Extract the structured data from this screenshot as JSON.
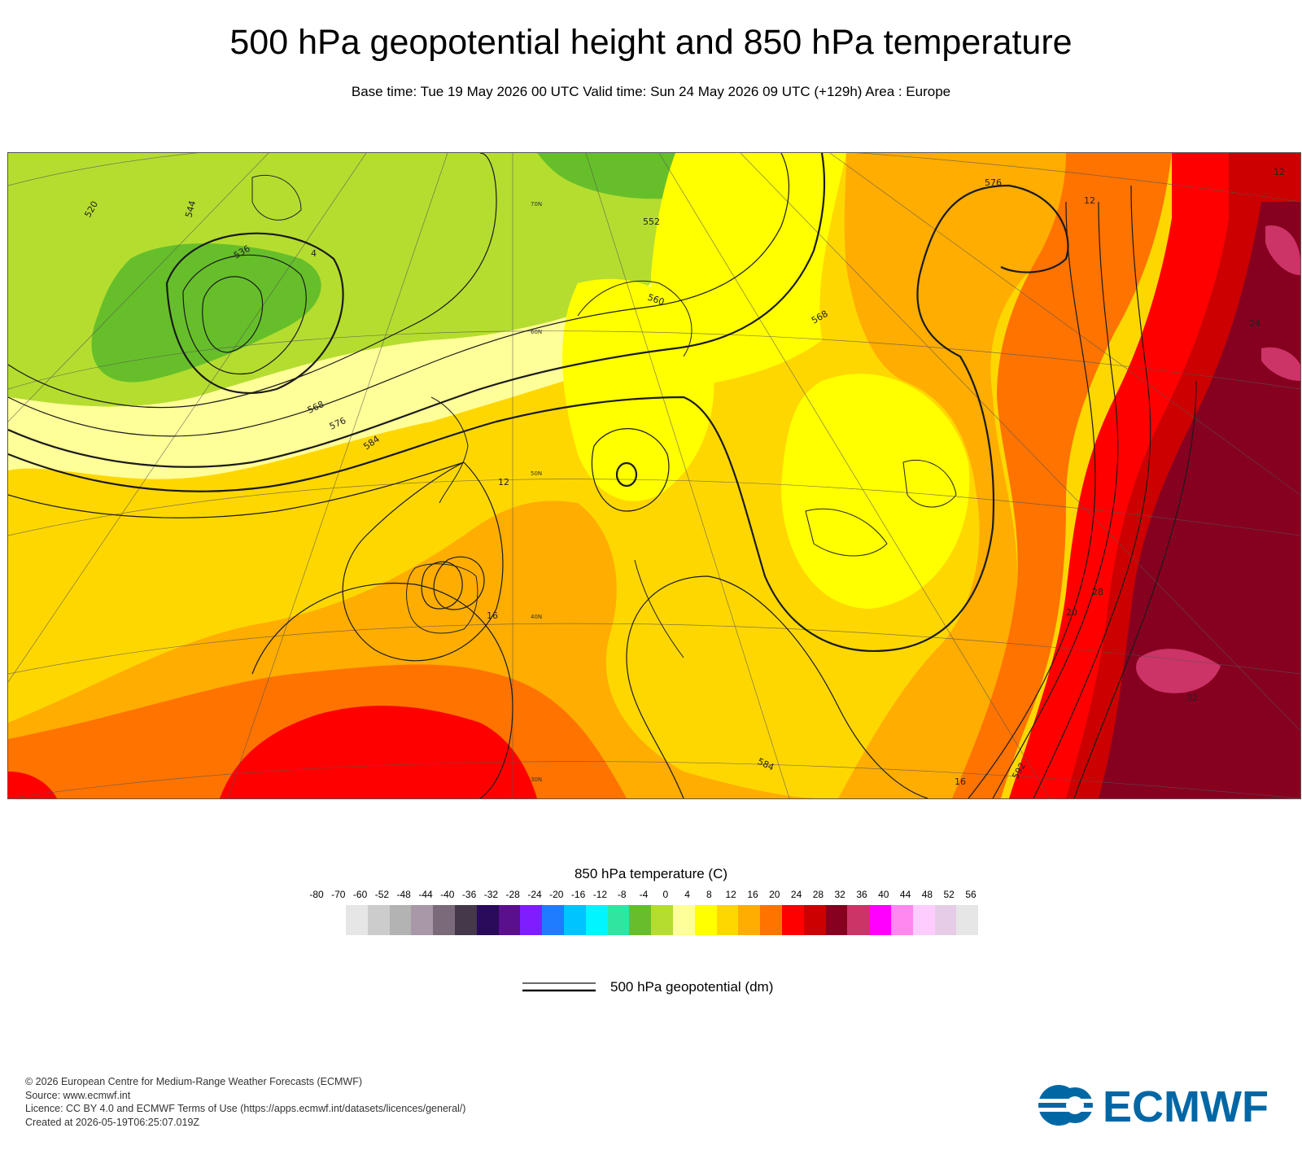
{
  "title": "500 hPa geopotential height and 850 hPa temperature",
  "subtitle": "Base time: Tue 19 May 2026 00 UTC Valid time: Sun 24 May 2026 09 UTC (+129h) Area : Europe",
  "map": {
    "contour_labels": [
      "520",
      "536",
      "544",
      "552",
      "560",
      "568",
      "576",
      "584",
      "592"
    ],
    "contour_labels_shown": [
      {
        "text": "520"
      },
      {
        "text": "536"
      },
      {
        "text": "544"
      },
      {
        "text": "552"
      },
      {
        "text": "560"
      },
      {
        "text": "568"
      },
      {
        "text": "576"
      },
      {
        "text": "584"
      },
      {
        "text": "568"
      },
      {
        "text": "576"
      },
      {
        "text": "584"
      },
      {
        "text": "592"
      }
    ],
    "graticule_labels": [
      "70N",
      "60N",
      "50N",
      "40N",
      "30N"
    ],
    "temp_labels": [
      "4",
      "12",
      "16",
      "12",
      "24",
      "28",
      "32",
      "20",
      "16",
      "12"
    ]
  },
  "colorbar": {
    "title": "850 hPa temperature (C)",
    "ticks": [
      "-80",
      "-70",
      "-60",
      "-52",
      "-48",
      "-44",
      "-40",
      "-36",
      "-32",
      "-28",
      "-24",
      "-20",
      "-16",
      "-12",
      "-8",
      "-4",
      "0",
      "4",
      "8",
      "12",
      "16",
      "20",
      "24",
      "28",
      "32",
      "36",
      "40",
      "44",
      "48",
      "52",
      "56"
    ],
    "colors": [
      "#e6e6e6",
      "#cccccc",
      "#b3b3b3",
      "#a898a8",
      "#7a6a7a",
      "#44384a",
      "#2a0a5a",
      "#5a0f8c",
      "#7f1dff",
      "#1f7cff",
      "#00c4ff",
      "#00f5ff",
      "#2ee6a0",
      "#66bf2a",
      "#b5dd30",
      "#ffff99",
      "#ffff00",
      "#ffd700",
      "#ffad00",
      "#ff7300",
      "#ff0000",
      "#cc0000",
      "#860020",
      "#cc3366",
      "#ff00ff",
      "#ff88ee",
      "#ffccff",
      "#e6cce6",
      "#e6e6e6"
    ]
  },
  "legend": {
    "line_label": "500 hPa geopotential (dm)"
  },
  "footer": {
    "line1": "© 2026 European Centre for Medium-Range Weather Forecasts (ECMWF)",
    "line2": "Source: www.ecmwf.int",
    "line3": "Licence: CC BY 4.0 and ECMWF Terms of Use (https://apps.ecmwf.int/datasets/licences/general/)",
    "line4": "Created at 2026-05-19T06:25:07.019Z"
  },
  "logo": {
    "text": "ECMWF",
    "color": "#0067a5"
  }
}
